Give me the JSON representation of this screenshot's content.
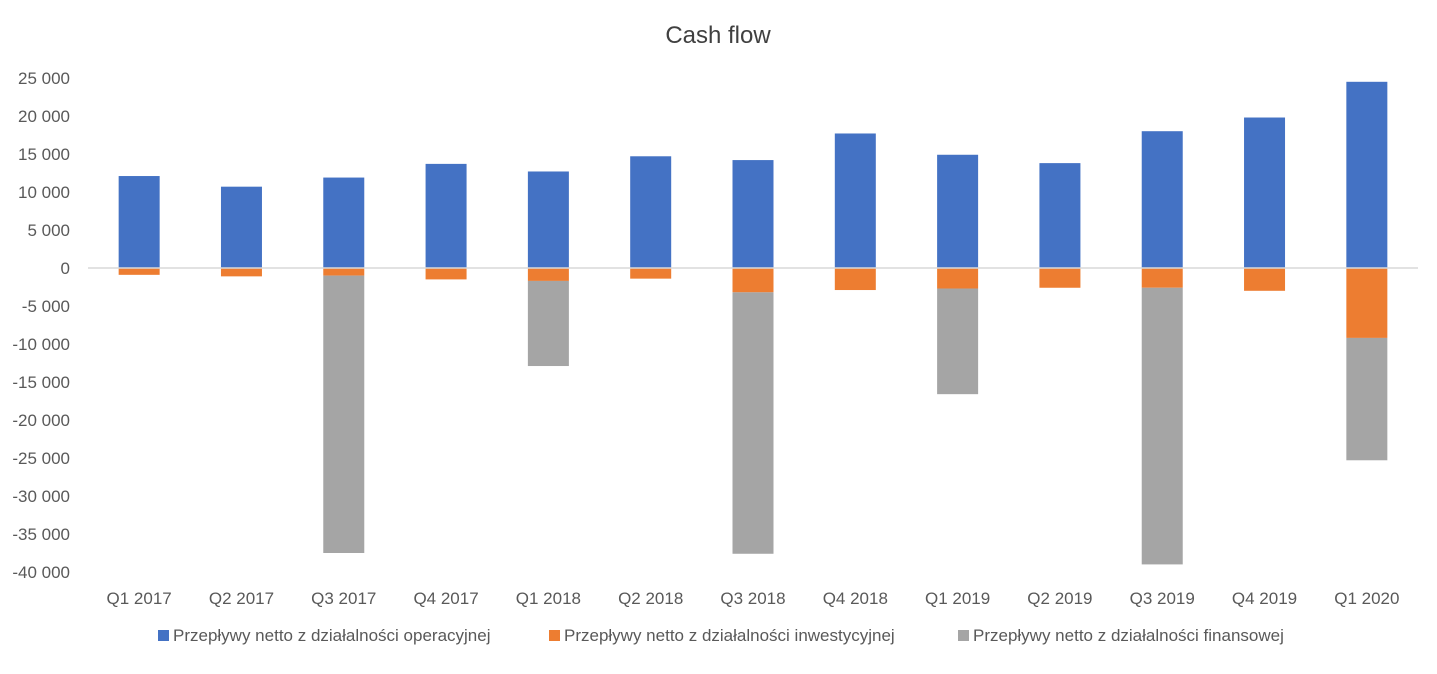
{
  "chart_data": {
    "type": "bar",
    "stacked": true,
    "title": "Cash flow",
    "xlabel": "",
    "ylabel": "",
    "categories": [
      "Q1 2017",
      "Q2 2017",
      "Q3 2017",
      "Q4 2017",
      "Q1 2018",
      "Q2 2018",
      "Q3 2018",
      "Q4 2018",
      "Q1 2019",
      "Q2 2019",
      "Q3 2019",
      "Q4 2019",
      "Q1 2020"
    ],
    "series": [
      {
        "name": "Przepływy netto z działalności operacyjnej",
        "color": "#4472C4",
        "values": [
          12100,
          10700,
          11900,
          13700,
          12700,
          14700,
          14200,
          17700,
          14900,
          13800,
          18000,
          19800,
          24500
        ]
      },
      {
        "name": "Przepływy netto z działalności inwestycyjnej",
        "color": "#ED7D31",
        "values": [
          -900,
          -1100,
          -1000,
          -1500,
          -1700,
          -1400,
          -3200,
          -2900,
          -2700,
          -2600,
          -2600,
          -3000,
          -9200
        ]
      },
      {
        "name": "Przepływy netto z działalności finansowej",
        "color": "#A5A5A5",
        "values": [
          0,
          0,
          -36500,
          0,
          -11200,
          0,
          -34400,
          0,
          -13900,
          0,
          -36400,
          0,
          -16100
        ]
      }
    ],
    "ylim": [
      -40000,
      25000
    ],
    "yticks": [
      25000,
      20000,
      15000,
      10000,
      5000,
      0,
      -5000,
      -10000,
      -15000,
      -20000,
      -25000,
      -30000,
      -35000,
      -40000
    ],
    "ytick_labels": [
      "25 000",
      "20 000",
      "15 000",
      "10 000",
      "5 000",
      "0",
      "-5 000",
      "-10 000",
      "-15 000",
      "-20 000",
      "-25 000",
      "-30 000",
      "-35 000",
      "-40 000"
    ],
    "grid": false,
    "legend_position": "bottom"
  }
}
